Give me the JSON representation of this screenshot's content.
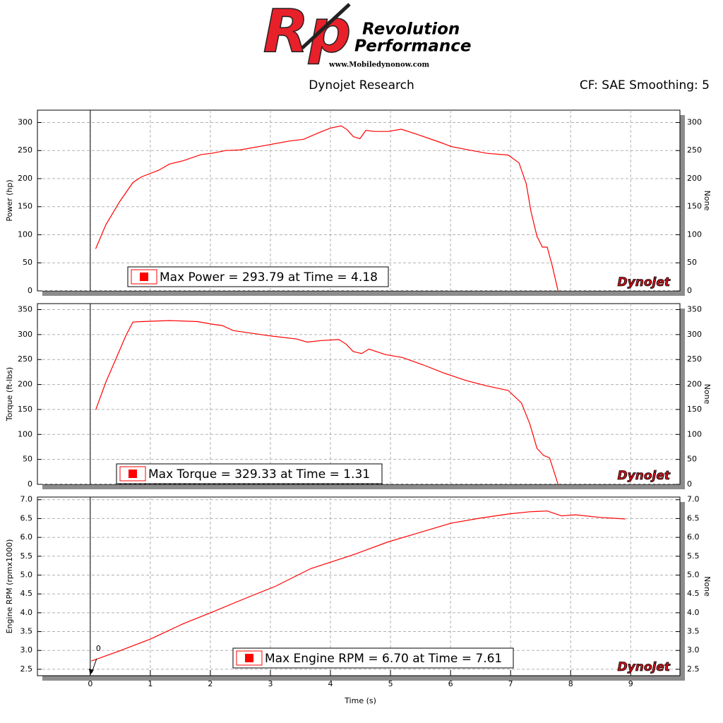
{
  "header": {
    "logo_initials": "Rp",
    "brand_line1": "Revolution",
    "brand_line2": "Performance",
    "website": "www.Mobiledynonow.com",
    "center": "Dynojet Research",
    "right": "CF: SAE Smoothing: 5"
  },
  "chart_data": [
    {
      "type": "line",
      "y_label": "Power (hp)",
      "y2_label": "None",
      "watermark": "Dynojet",
      "grid": true,
      "x": [
        0.09,
        0.26,
        0.49,
        0.71,
        0.85,
        1.14,
        1.32,
        1.55,
        1.85,
        2.02,
        2.26,
        2.49,
        2.96,
        3.32,
        3.55,
        3.79,
        4.0,
        4.18,
        4.28,
        4.38,
        4.49,
        4.59,
        4.73,
        4.96,
        5.18,
        5.44,
        5.79,
        6.02,
        6.26,
        6.61,
        6.96,
        7.14,
        7.26,
        7.34,
        7.44,
        7.53,
        7.61,
        7.69,
        7.79
      ],
      "series": [
        {
          "name": "Max Power = 293.79 at Time = 4.18",
          "color": "#ff0000",
          "values": [
            75,
            118,
            159,
            193,
            203,
            215,
            226,
            232,
            243,
            245,
            250,
            251,
            260,
            267,
            270,
            281,
            290,
            294,
            287,
            275,
            271,
            286,
            284,
            284,
            288,
            279,
            266,
            257,
            252,
            245,
            242,
            228,
            191,
            141,
            97,
            78,
            78,
            46,
            0
          ]
        }
      ],
      "xlim": [
        -0.88,
        9.82
      ],
      "xticks": [
        0,
        1,
        2,
        3,
        4,
        5,
        6,
        7,
        8,
        9
      ],
      "ylim": [
        0,
        322
      ],
      "yticks": [
        0,
        50,
        100,
        150,
        200,
        250,
        300
      ],
      "y2lim": [
        0,
        322
      ],
      "y2ticks": [
        0,
        50,
        100,
        150,
        200,
        250,
        300
      ]
    },
    {
      "type": "line",
      "y_label": "Torque (ft-lbs)",
      "y2_label": "None",
      "watermark": "Dynojet",
      "grid": true,
      "x": [
        0.09,
        0.26,
        0.44,
        0.59,
        0.71,
        0.85,
        1.32,
        1.79,
        2.02,
        2.2,
        2.38,
        2.96,
        3.44,
        3.61,
        3.85,
        4.14,
        4.26,
        4.38,
        4.52,
        4.64,
        4.91,
        5.2,
        5.55,
        5.91,
        6.26,
        6.61,
        6.96,
        7.18,
        7.32,
        7.44,
        7.55,
        7.65,
        7.79
      ],
      "series": [
        {
          "name": "Max Torque = 329.33 at Time = 1.31",
          "color": "#ff0000",
          "values": [
            149,
            205,
            255,
            297,
            325,
            326,
            328,
            326,
            321,
            318,
            308,
            298,
            291,
            285,
            288,
            290,
            281,
            266,
            262,
            271,
            260,
            254,
            239,
            222,
            208,
            197,
            188,
            163,
            121,
            72,
            58,
            53,
            0
          ]
        }
      ],
      "xlim": [
        -0.88,
        9.82
      ],
      "xticks": [
        0,
        1,
        2,
        3,
        4,
        5,
        6,
        7,
        8,
        9
      ],
      "ylim": [
        0,
        362
      ],
      "yticks": [
        0,
        50,
        100,
        150,
        200,
        250,
        300,
        350
      ],
      "y2lim": [
        0,
        362
      ],
      "y2ticks": [
        0,
        50,
        100,
        150,
        200,
        250,
        300,
        350
      ]
    },
    {
      "type": "line",
      "y_label": "Engine RPM (rpmx1000)",
      "y2_label": "None",
      "x_label": "Time (s)",
      "watermark": "Dynojet",
      "annotation": "0",
      "grid": true,
      "x": [
        0.02,
        0.49,
        1.0,
        1.55,
        2.02,
        2.61,
        3.08,
        3.67,
        4.38,
        4.96,
        5.55,
        6.02,
        6.49,
        6.96,
        7.32,
        7.61,
        7.85,
        8.08,
        8.49,
        8.91
      ],
      "series": [
        {
          "name": "Max Engine RPM = 6.70 at Time = 7.61",
          "color": "#ff0000",
          "values": [
            2.72,
            2.99,
            3.3,
            3.71,
            4.01,
            4.4,
            4.7,
            5.17,
            5.54,
            5.88,
            6.16,
            6.38,
            6.51,
            6.62,
            6.68,
            6.7,
            6.57,
            6.6,
            6.53,
            6.49
          ]
        }
      ],
      "xlim": [
        -0.88,
        9.82
      ],
      "xticks": [
        0,
        1,
        2,
        3,
        4,
        5,
        6,
        7,
        8,
        9
      ],
      "ylim": [
        2.33,
        7.07
      ],
      "yticks": [
        2.5,
        {
          "value": 3,
          "label": "3.0"
        },
        3.5,
        {
          "value": 4,
          "label": "4.0"
        },
        4.5,
        {
          "value": 5,
          "label": "5.0"
        },
        5.5,
        {
          "value": 6,
          "label": "6.0"
        },
        6.5,
        {
          "value": 7,
          "label": "7.0"
        }
      ],
      "y2lim": [
        2.33,
        7.07
      ],
      "y2ticks": [
        2.5,
        {
          "value": 3,
          "label": "3.0"
        },
        3.5,
        {
          "value": 4,
          "label": "4.0"
        },
        4.5,
        {
          "value": 5,
          "label": "5.0"
        },
        5.5,
        {
          "value": 6,
          "label": "6.0"
        },
        6.5,
        {
          "value": 7,
          "label": "7.0"
        }
      ]
    }
  ]
}
